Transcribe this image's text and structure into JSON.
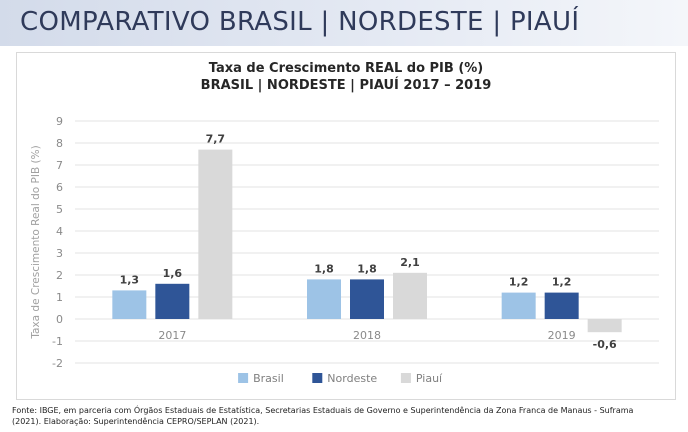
{
  "header": {
    "title": "COMPARATIVO BRASIL | NORDESTE | PIAUÍ"
  },
  "chart_data": {
    "type": "bar",
    "title": "Taxa de Crescimento REAL do PIB (%)",
    "subtitle": "BRASIL | NORDESTE | PIAUÍ 2017 – 2019",
    "xlabel": "",
    "ylabel": "Taxa de Crescimento Real do PIB (%)",
    "ylim": [
      -2,
      9
    ],
    "yticks": [
      "9",
      "8",
      "7",
      "6",
      "5",
      "4",
      "3",
      "2",
      "1",
      "0",
      "-1",
      "-2"
    ],
    "categories": [
      "2017",
      "2018",
      "2019"
    ],
    "series": [
      {
        "name": "Brasil",
        "values": [
          1.3,
          1.8,
          1.2
        ],
        "labels": [
          "1,3",
          "1,8",
          "1,2"
        ],
        "color": "#9dc3e6"
      },
      {
        "name": "Nordeste",
        "values": [
          1.6,
          1.8,
          1.2
        ],
        "labels": [
          "1,6",
          "1,8",
          "1,2"
        ],
        "color": "#2f5597"
      },
      {
        "name": "Piauí",
        "values": [
          7.7,
          2.1,
          -0.6
        ],
        "labels": [
          "7,7",
          "2,1",
          "-0,6"
        ],
        "color": "#d9d9d9"
      }
    ],
    "grid": true,
    "legend": "bottom"
  },
  "footer": {
    "source_line1": "Fonte: IBGE, em parceria com Órgãos Estaduais de Estatística, Secretarias Estaduais de Governo e Superintendência da Zona Franca de Manaus - Suframa",
    "source_line2": "(2021). Elaboração: Superintendência CEPRO/SEPLAN (2021)."
  }
}
